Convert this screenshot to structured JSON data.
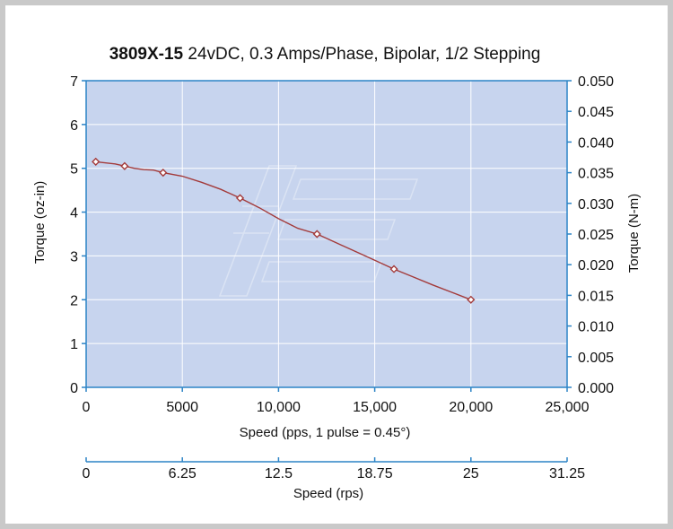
{
  "chart_data": {
    "type": "line",
    "title_bold": "3809X-15",
    "title_rest": " 24vDC, 0.3 Amps/Phase, Bipolar, 1/2 Stepping",
    "xlabel": "Speed (pps, 1 pulse = 0.45°)",
    "xlabel2": "Speed (rps)",
    "ylabel": "Torque (oz-in)",
    "ylabel_right": "Torque (N-m)",
    "xlim": [
      0,
      25000
    ],
    "ylim": [
      0,
      7
    ],
    "ylim_right": [
      0,
      0.05
    ],
    "x_ticks": [
      "0",
      "5000",
      "10,000",
      "15,000",
      "20,000",
      "25,000"
    ],
    "x_tick_values": [
      0,
      5000,
      10000,
      15000,
      20000,
      25000
    ],
    "x2_ticks": [
      "0",
      "6.25",
      "12.5",
      "18.75",
      "25",
      "31.25"
    ],
    "y_ticks": [
      "0",
      "1",
      "2",
      "3",
      "4",
      "5",
      "6",
      "7"
    ],
    "y_tick_values": [
      0,
      1,
      2,
      3,
      4,
      5,
      6,
      7
    ],
    "y_right_ticks": [
      "0.000",
      "0.005",
      "0.010",
      "0.015",
      "0.020",
      "0.025",
      "0.030",
      "0.035",
      "0.040",
      "0.045",
      "0.050"
    ],
    "y_right_tick_values": [
      0,
      0.005,
      0.01,
      0.015,
      0.02,
      0.025,
      0.03,
      0.035,
      0.04,
      0.045,
      0.05
    ],
    "grid": true,
    "series": [
      {
        "name": "Torque",
        "markers": [
          [
            500,
            5.15
          ],
          [
            2000,
            5.05
          ],
          [
            4000,
            4.9
          ],
          [
            8000,
            4.32
          ],
          [
            12000,
            3.5
          ],
          [
            16000,
            2.7
          ],
          [
            20000,
            2.0
          ]
        ],
        "curve": [
          [
            500,
            5.15
          ],
          [
            1500,
            5.1
          ],
          [
            2500,
            5.0
          ],
          [
            3000,
            4.97
          ],
          [
            3500,
            4.96
          ],
          [
            4000,
            4.9
          ],
          [
            5000,
            4.82
          ],
          [
            6000,
            4.68
          ],
          [
            7000,
            4.52
          ],
          [
            8000,
            4.32
          ],
          [
            9000,
            4.1
          ],
          [
            10000,
            3.85
          ],
          [
            11000,
            3.63
          ],
          [
            12000,
            3.5
          ],
          [
            13000,
            3.3
          ],
          [
            14000,
            3.1
          ],
          [
            15000,
            2.9
          ],
          [
            16000,
            2.7
          ],
          [
            17000,
            2.52
          ],
          [
            18000,
            2.34
          ],
          [
            19000,
            2.17
          ],
          [
            20000,
            2.0
          ]
        ]
      }
    ],
    "colors": {
      "plot_bg": "#c7d4ee",
      "axis": "#2b83c6",
      "grid": "#ffffff",
      "line": "#a33a3a",
      "marker_fill": "#ffffff"
    }
  }
}
